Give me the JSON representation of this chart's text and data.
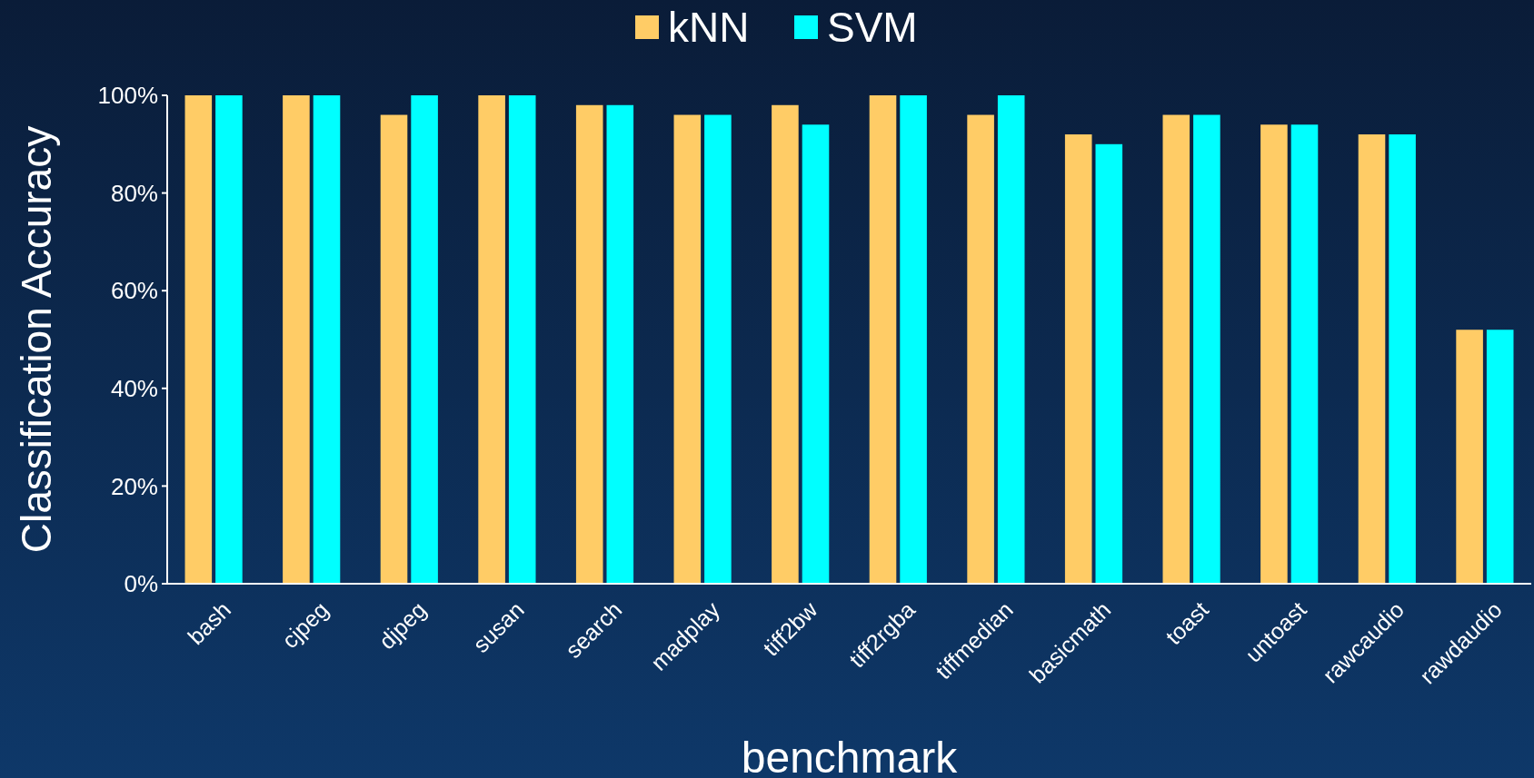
{
  "chart_data": {
    "type": "bar",
    "xlabel": "benchmark",
    "ylabel": "Classification Accuracy",
    "categories": [
      "bash",
      "cjpeg",
      "djpeg",
      "susan",
      "search",
      "madplay",
      "tiff2bw",
      "tiff2rgba",
      "tiffmedian",
      "basicmath",
      "toast",
      "untoast",
      "rawcaudio",
      "rawdaudio"
    ],
    "series": [
      {
        "name": "kNN",
        "color": "#ffcc66",
        "values": [
          100,
          100,
          96,
          100,
          98,
          96,
          98,
          100,
          96,
          92,
          96,
          94,
          92,
          52
        ]
      },
      {
        "name": "SVM",
        "color": "#00ffff",
        "values": [
          100,
          100,
          100,
          100,
          98,
          96,
          94,
          100,
          100,
          90,
          96,
          94,
          92,
          52
        ]
      }
    ],
    "ylim": [
      0,
      100
    ],
    "yticks": [
      {
        "value": 0,
        "label": "0%"
      },
      {
        "value": 20,
        "label": "20%"
      },
      {
        "value": 40,
        "label": "40%"
      },
      {
        "value": 60,
        "label": "60%"
      },
      {
        "value": 80,
        "label": "80%"
      },
      {
        "value": 100,
        "label": "100%"
      }
    ],
    "legend": "top",
    "grid": false
  }
}
